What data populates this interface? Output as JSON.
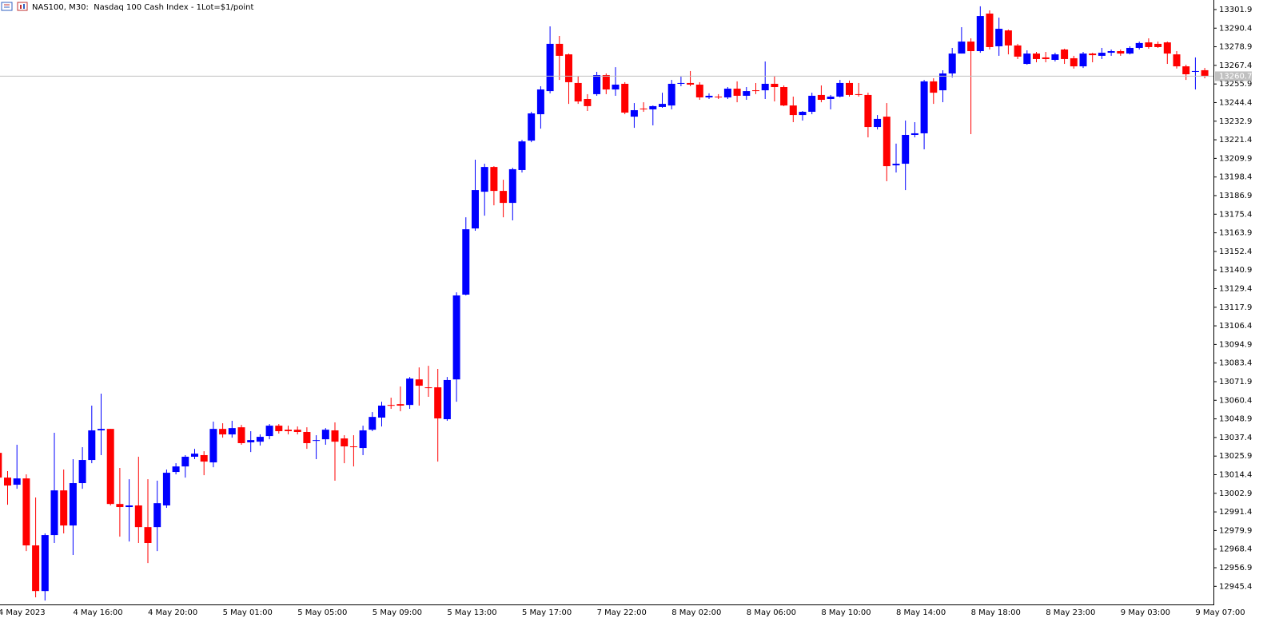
{
  "chart_data": {
    "type": "candlestick",
    "title": "NAS100, M30:  Nasdaq 100 Cash Index - 1Lot=$1/point",
    "up_color": "#0000ff",
    "down_color": "#ff0000",
    "last_price": 13260.7,
    "categories": [
      "4 May 2023",
      null,
      null,
      null,
      null,
      null,
      null,
      null,
      "4 May 16:00",
      null,
      null,
      null,
      null,
      null,
      null,
      null,
      "4 May 20:00",
      null,
      null,
      null,
      null,
      null,
      null,
      null,
      "5 May 01:00",
      null,
      null,
      null,
      null,
      null,
      null,
      null,
      "5 May 05:00",
      null,
      null,
      null,
      null,
      null,
      null,
      null,
      "5 May 09:00",
      null,
      null,
      null,
      null,
      null,
      null,
      null,
      "5 May 13:00",
      null,
      null,
      null,
      null,
      null,
      null,
      null,
      "5 May 17:00",
      null,
      null,
      null,
      null,
      null,
      null,
      null,
      "7 May 22:00",
      null,
      null,
      null,
      null,
      null,
      null,
      null,
      "8 May 02:00",
      null,
      null,
      null,
      null,
      null,
      null,
      null,
      "8 May 06:00",
      null,
      null,
      null,
      null,
      null,
      null,
      null,
      "8 May 10:00",
      null,
      null,
      null,
      null,
      null,
      null,
      null,
      "8 May 14:00",
      null,
      null,
      null,
      null,
      null,
      null,
      null,
      "8 May 18:00",
      null,
      null,
      null,
      null,
      null,
      null,
      null,
      "8 May 23:00",
      null,
      null,
      null,
      null,
      null,
      null,
      null,
      "9 May 03:00",
      null,
      null,
      null,
      null,
      null,
      null,
      null,
      "9 May 07:00",
      null
    ],
    "open": [
      13027.9,
      13012.6,
      13008.2,
      13012.1,
      12970.7,
      12942.5,
      12977.1,
      13004.7,
      12983.0,
      13009.2,
      13023.5,
      13041.8,
      13042.7,
      12996.3,
      12994.4,
      12995.4,
      12982.0,
      12982.0,
      12995.4,
      13016.1,
      13019.5,
      13025.5,
      13026.5,
      13022.0,
      13042.7,
      13039.3,
      13043.7,
      13034.4,
      13034.8,
      13038.3,
      13044.7,
      13042.2,
      13042.2,
      13040.8,
      13035.3,
      13036.3,
      13041.8,
      13036.8,
      13031.9,
      13030.9,
      13042.2,
      13049.7,
      13057.5,
      13058.0,
      13057.5,
      13073.3,
      13068.4,
      13068.4,
      13048.7,
      13073.3,
      13125.7,
      13166.6,
      13189.3,
      13204.6,
      13189.8,
      13182.4,
      13202.7,
      13220.9,
      13237.2,
      13251.5,
      13280.7,
      13274.2,
      13256.5,
      13246.6,
      13249.6,
      13261.4,
      13252.5,
      13256.0,
      13235.7,
      13240.7,
      13240.2,
      13241.7,
      13242.6,
      13256.0,
      13256.5,
      13255.5,
      13247.6,
      13248.1,
      13247.6,
      13253.0,
      13248.6,
      13252.0,
      13252.0,
      13256.0,
      13254.0,
      13242.6,
      13236.7,
      13238.7,
      13249.1,
      13246.6,
      13248.1,
      13256.5,
      13249.6,
      13249.1,
      13229.3,
      13235.7,
      13205.6,
      13206.6,
      13224.4,
      13225.4,
      13257.5,
      13252.0,
      13262.4,
      13274.7,
      13282.1,
      13276.2,
      13299.4,
      13279.2,
      13289.0,
      13279.7,
      13268.3,
      13274.7,
      13272.3,
      13270.8,
      13277.2,
      13271.8,
      13266.8,
      13274.7,
      13273.3,
      13275.2,
      13276.2,
      13274.7,
      13278.2,
      13281.6,
      13280.7,
      13281.6,
      13274.2,
      13266.8,
      13263.4,
      13264.4
    ],
    "high": [
      13031.4,
      13016.6,
      13032.9,
      13014.6,
      13000.3,
      12978.1,
      13040.3,
      13017.6,
      13024.0,
      13031.4,
      13057.1,
      13064.5,
      13042.7,
      13018.6,
      13011.6,
      13025.5,
      13011.6,
      13010.7,
      13017.6,
      13021.5,
      13026.5,
      13030.4,
      13028.9,
      13047.2,
      13046.2,
      13047.7,
      13045.2,
      13041.3,
      13039.3,
      13045.7,
      13045.7,
      13044.7,
      13044.2,
      13043.7,
      13038.8,
      13043.2,
      13046.7,
      13038.8,
      13038.8,
      13044.7,
      13053.1,
      13059.5,
      13062.0,
      13068.9,
      13074.8,
      13080.7,
      13081.7,
      13079.8,
      13074.8,
      13127.1,
      13173.5,
      13209.1,
      13206.6,
      13205.1,
      13196.7,
      13204.1,
      13221.4,
      13238.7,
      13254.5,
      13291.5,
      13285.6,
      13274.7,
      13260.9,
      13249.6,
      13263.4,
      13262.4,
      13266.3,
      13257.0,
      13244.1,
      13244.6,
      13242.6,
      13250.5,
      13258.4,
      13260.4,
      13263.9,
      13257.0,
      13250.1,
      13249.6,
      13254.0,
      13257.5,
      13254.0,
      13256.5,
      13269.8,
      13260.9,
      13255.0,
      13248.1,
      13239.2,
      13250.5,
      13255.0,
      13249.1,
      13258.4,
      13258.0,
      13256.5,
      13250.5,
      13236.7,
      13244.1,
      13219.0,
      13233.3,
      13232.3,
      13258.4,
      13259.4,
      13264.4,
      13278.2,
      13291.0,
      13284.1,
      13303.9,
      13301.4,
      13296.9,
      13289.5,
      13280.7,
      13276.7,
      13275.7,
      13275.7,
      13275.2,
      13277.7,
      13273.3,
      13275.7,
      13275.2,
      13278.2,
      13277.2,
      13277.2,
      13279.2,
      13282.1,
      13284.1,
      13282.1,
      13282.1,
      13276.2,
      13267.8,
      13272.3,
      13265.8
    ],
    "low": [
      13006.7,
      12995.8,
      13005.7,
      12967.2,
      12938.6,
      12936.6,
      12972.2,
      12978.1,
      12964.8,
      13005.7,
      13021.5,
      13026.5,
      12995.4,
      12976.1,
      12973.1,
      12972.2,
      12959.8,
      12967.2,
      12993.9,
      13014.6,
      13012.6,
      13024.0,
      13014.1,
      13019.0,
      13037.3,
      13037.3,
      13032.9,
      13028.4,
      13032.4,
      13036.3,
      13039.8,
      13039.3,
      13039.3,
      13030.4,
      13024.0,
      13032.9,
      13010.7,
      13021.5,
      13019.5,
      13026.5,
      13041.3,
      13044.2,
      13055.1,
      13053.6,
      13055.1,
      13057.1,
      13062.5,
      13022.5,
      13047.7,
      13059.5,
      13125.2,
      13165.2,
      13174.5,
      13180.9,
      13173.5,
      13171.6,
      13201.2,
      13219.9,
      13228.3,
      13250.1,
      13258.4,
      13243.6,
      13243.6,
      13239.2,
      13248.6,
      13249.6,
      13248.6,
      13237.2,
      13228.8,
      13238.7,
      13230.3,
      13241.2,
      13240.2,
      13254.5,
      13254.5,
      13246.1,
      13246.6,
      13246.6,
      13246.6,
      13244.6,
      13246.1,
      13249.6,
      13246.6,
      13245.1,
      13242.2,
      13232.3,
      13233.3,
      13237.2,
      13244.6,
      13240.2,
      13247.6,
      13248.1,
      13248.1,
      13222.9,
      13227.8,
      13195.8,
      13201.2,
      13190.3,
      13222.9,
      13215.5,
      13243.6,
      13244.6,
      13259.9,
      13274.7,
      13224.9,
      13275.2,
      13277.2,
      13273.3,
      13274.2,
      13271.3,
      13267.8,
      13269.3,
      13269.3,
      13269.8,
      13268.3,
      13265.4,
      13265.8,
      13269.3,
      13271.3,
      13273.3,
      13273.3,
      13274.2,
      13277.2,
      13277.7,
      13278.2,
      13268.3,
      13265.4,
      13258.4,
      13252.5,
      13259.4
    ],
    "close": [
      13012.6,
      13007.7,
      13012.1,
      12970.7,
      12942.5,
      12977.1,
      13004.7,
      12983.0,
      13009.2,
      13023.5,
      13041.8,
      13042.7,
      12996.3,
      12994.4,
      12995.4,
      12982.0,
      12972.2,
      12996.8,
      13015.6,
      13019.5,
      13025.5,
      13027.4,
      13022.5,
      13042.7,
      13039.3,
      13043.2,
      13033.9,
      13035.8,
      13037.8,
      13044.7,
      13041.3,
      13041.3,
      13040.8,
      13033.9,
      13035.8,
      13042.2,
      13034.8,
      13031.9,
      13031.4,
      13041.8,
      13050.1,
      13057.1,
      13057.1,
      13057.1,
      13073.8,
      13069.4,
      13067.9,
      13049.2,
      13072.9,
      13125.2,
      13166.1,
      13190.3,
      13204.6,
      13189.8,
      13182.4,
      13203.2,
      13220.4,
      13237.7,
      13252.5,
      13280.7,
      13273.3,
      13257.0,
      13245.1,
      13242.2,
      13261.4,
      13252.5,
      13255.5,
      13238.2,
      13239.7,
      13240.2,
      13242.2,
      13243.6,
      13256.0,
      13256.5,
      13255.5,
      13247.6,
      13248.6,
      13247.6,
      13253.0,
      13248.6,
      13251.5,
      13251.5,
      13256.0,
      13254.0,
      13242.6,
      13236.7,
      13238.7,
      13248.6,
      13246.1,
      13248.1,
      13256.5,
      13249.1,
      13249.1,
      13229.3,
      13234.3,
      13205.1,
      13206.6,
      13224.4,
      13225.4,
      13257.5,
      13250.5,
      13262.4,
      13274.7,
      13282.1,
      13276.2,
      13297.9,
      13278.7,
      13290.0,
      13279.7,
      13272.8,
      13274.7,
      13271.3,
      13271.3,
      13274.2,
      13271.3,
      13266.8,
      13274.7,
      13273.7,
      13275.2,
      13276.2,
      13274.7,
      13278.2,
      13281.2,
      13278.7,
      13278.7,
      13274.7,
      13266.8,
      13261.9,
      13263.9,
      13260.7
    ],
    "ylim": [
      12934.2,
      13307.8
    ],
    "yticks": [
      13301.9,
      13290.4,
      13278.9,
      13267.4,
      13255.9,
      13244.4,
      13232.9,
      13221.4,
      13209.9,
      13198.4,
      13186.9,
      13175.4,
      13163.9,
      13152.4,
      13140.9,
      13129.4,
      13117.9,
      13106.4,
      13094.9,
      13083.4,
      13071.9,
      13060.4,
      13048.9,
      13037.4,
      13025.9,
      13014.4,
      13002.9,
      12991.4,
      12979.9,
      12968.4,
      12956.9,
      12945.4
    ]
  }
}
